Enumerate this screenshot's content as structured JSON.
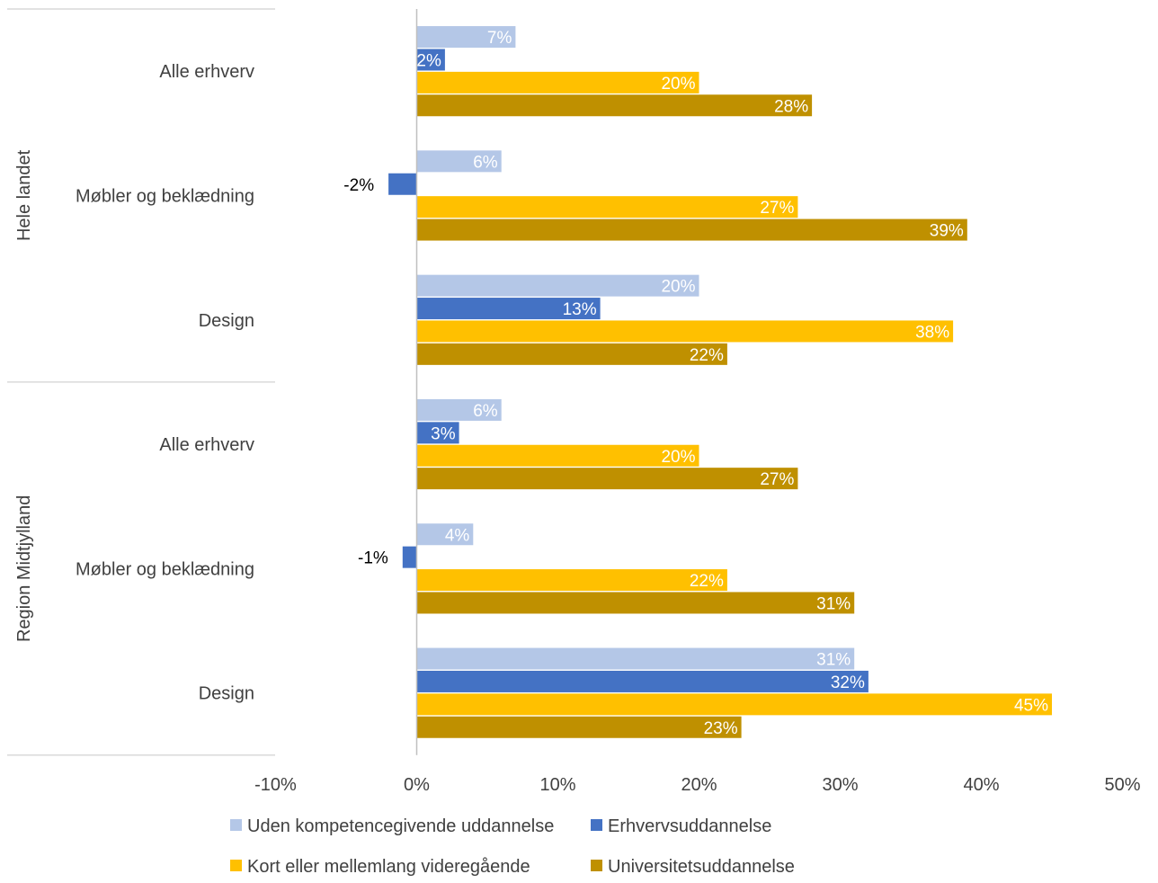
{
  "chart_data": {
    "type": "bar",
    "orientation": "horizontal",
    "xlim": [
      -10,
      50
    ],
    "x_ticks": [
      "-10%",
      "0%",
      "10%",
      "20%",
      "30%",
      "40%",
      "50%"
    ],
    "grid": false,
    "legend_position": "bottom",
    "groups": [
      {
        "name": "Hele landet",
        "categories": [
          {
            "name": "Alle erhverv",
            "values": [
              7,
              2,
              20,
              28
            ]
          },
          {
            "name": "Møbler og beklædning",
            "values": [
              6,
              -2,
              27,
              39
            ]
          },
          {
            "name": "Design",
            "values": [
              20,
              13,
              38,
              22
            ]
          }
        ]
      },
      {
        "name": "Region Midtjylland",
        "categories": [
          {
            "name": "Alle erhverv",
            "values": [
              6,
              3,
              20,
              27
            ]
          },
          {
            "name": "Møbler og beklædning",
            "values": [
              4,
              -1,
              22,
              31
            ]
          },
          {
            "name": "Design",
            "values": [
              31,
              32,
              45,
              23
            ]
          }
        ]
      }
    ],
    "series": [
      {
        "name": "Uden kompetencegivende uddannelse",
        "color": "#B4C7E7"
      },
      {
        "name": "Erhvervsuddannelse",
        "color": "#4472C4"
      },
      {
        "name": "Kort eller mellemlang videregående",
        "color": "#FFC000"
      },
      {
        "name": "Universitetsuddannelse",
        "color": "#BF9000"
      }
    ],
    "value_suffix": "%"
  }
}
